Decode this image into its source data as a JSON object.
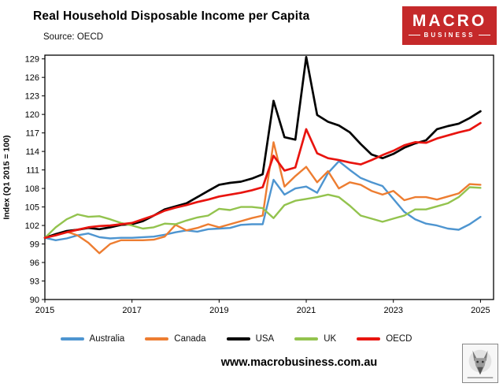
{
  "header": {
    "title": "Real Household Disposable Income per Capita",
    "source": "Source: OECD",
    "logo": {
      "line1": "MACRO",
      "line2": "BUSINESS",
      "bg_color": "#c5292a"
    }
  },
  "chart_data": {
    "type": "line",
    "title": "Real Household Disposable Income per Capita",
    "subtitle": "Source: OECD",
    "xlabel": "",
    "ylabel": "Index (Q1 2015 = 100)",
    "x_start": 2015,
    "x_step": 0.25,
    "xlim": [
      2015,
      2025.3
    ],
    "ylim": [
      90,
      129.6
    ],
    "xticks": [
      2015,
      2017,
      2019,
      2021,
      2023,
      2025
    ],
    "yticks": [
      90,
      93,
      96,
      99,
      102,
      105,
      108,
      111,
      114,
      117,
      120,
      123,
      126,
      129
    ],
    "grid": false,
    "legend_position": "bottom",
    "series": [
      {
        "name": "Australia",
        "color": "#4e95d0",
        "width": 2.4,
        "values": [
          100.0,
          99.6,
          99.9,
          100.4,
          100.7,
          100.1,
          99.9,
          100.0,
          100.0,
          100.1,
          100.2,
          100.5,
          100.9,
          101.2,
          101.0,
          101.4,
          101.5,
          101.6,
          102.1,
          102.2,
          102.2,
          109.4,
          107.0,
          108.0,
          108.3,
          107.3,
          110.5,
          112.4,
          111.0,
          109.7,
          109.0,
          108.4,
          106.3,
          104.2,
          103.0,
          102.3,
          102.0,
          101.5,
          101.3,
          102.2,
          103.4
        ]
      },
      {
        "name": "Canada",
        "color": "#ed7d31",
        "width": 2.4,
        "values": [
          100.0,
          100.6,
          101.0,
          100.4,
          99.2,
          97.5,
          99.0,
          99.6,
          99.6,
          99.6,
          99.7,
          100.2,
          102.1,
          101.2,
          101.6,
          102.2,
          101.7,
          102.2,
          102.7,
          103.2,
          103.6,
          115.5,
          108.3,
          110.0,
          111.5,
          109.0,
          110.8,
          108.0,
          109.0,
          108.6,
          107.6,
          107.0,
          107.6,
          106.1,
          106.6,
          106.6,
          106.2,
          106.7,
          107.2,
          108.7,
          108.6
        ]
      },
      {
        "name": "USA",
        "color": "#000000",
        "width": 2.7,
        "values": [
          100.0,
          100.6,
          101.1,
          101.3,
          101.6,
          101.4,
          101.7,
          102.1,
          102.2,
          102.7,
          103.6,
          104.6,
          105.1,
          105.6,
          106.6,
          107.6,
          108.6,
          108.9,
          109.1,
          109.6,
          110.3,
          122.2,
          116.3,
          115.9,
          129.3,
          119.9,
          118.8,
          118.2,
          117.1,
          115.2,
          113.5,
          112.9,
          113.6,
          114.6,
          115.3,
          115.8,
          117.6,
          118.1,
          118.5,
          119.4,
          120.5
        ]
      },
      {
        "name": "UK",
        "color": "#93c34e",
        "width": 2.4,
        "values": [
          100.0,
          101.7,
          103.0,
          103.8,
          103.4,
          103.5,
          103.0,
          102.4,
          102.0,
          101.5,
          101.7,
          102.3,
          102.2,
          102.8,
          103.3,
          103.6,
          104.7,
          104.5,
          105.0,
          105.0,
          104.8,
          103.2,
          105.3,
          106.0,
          106.3,
          106.6,
          107.0,
          106.6,
          105.2,
          103.6,
          103.1,
          102.6,
          103.1,
          103.6,
          104.6,
          104.6,
          105.1,
          105.6,
          106.6,
          108.2,
          108.1
        ]
      },
      {
        "name": "OECD",
        "color": "#e8140f",
        "width": 2.7,
        "values": [
          100.0,
          100.4,
          100.9,
          101.3,
          101.7,
          101.9,
          102.0,
          102.2,
          102.4,
          103.0,
          103.6,
          104.4,
          104.9,
          105.3,
          105.8,
          106.2,
          106.7,
          107.0,
          107.3,
          107.7,
          108.2,
          113.3,
          110.9,
          111.4,
          117.6,
          113.7,
          112.9,
          112.6,
          112.2,
          111.9,
          112.6,
          113.4,
          114.1,
          115.0,
          115.5,
          115.4,
          116.1,
          116.6,
          117.1,
          117.5,
          118.6
        ]
      }
    ]
  },
  "footer": {
    "url": "www.macrobusiness.com.au"
  }
}
